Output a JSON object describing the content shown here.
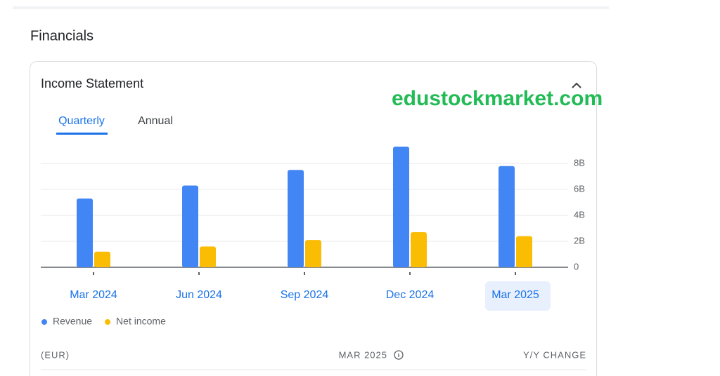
{
  "section_title": "Financials",
  "card_title": "Income Statement",
  "tabs": [
    "Quarterly",
    "Annual"
  ],
  "watermark": "edustockmarket.com",
  "chart_data": {
    "type": "bar",
    "categories": [
      "Mar 2024",
      "Jun 2024",
      "Sep 2024",
      "Dec 2024",
      "Mar 2025"
    ],
    "series": [
      {
        "name": "Revenue",
        "color": "#4285f4",
        "values": [
          5.3,
          6.3,
          7.5,
          9.3,
          7.8
        ]
      },
      {
        "name": "Net income",
        "color": "#fbbc04",
        "values": [
          1.2,
          1.6,
          2.1,
          2.7,
          2.4
        ]
      }
    ],
    "ylim": [
      0,
      9.5
    ],
    "yticks": [
      0,
      {
        "value": 2,
        "label": "2B"
      },
      {
        "value": 4,
        "label": "4B"
      },
      {
        "value": 6,
        "label": "6B"
      },
      {
        "value": 8,
        "label": "8B"
      }
    ],
    "grid": true
  },
  "table_header": {
    "unit": "(EUR)",
    "period": "MAR 2025",
    "change": "Y/Y CHANGE"
  }
}
